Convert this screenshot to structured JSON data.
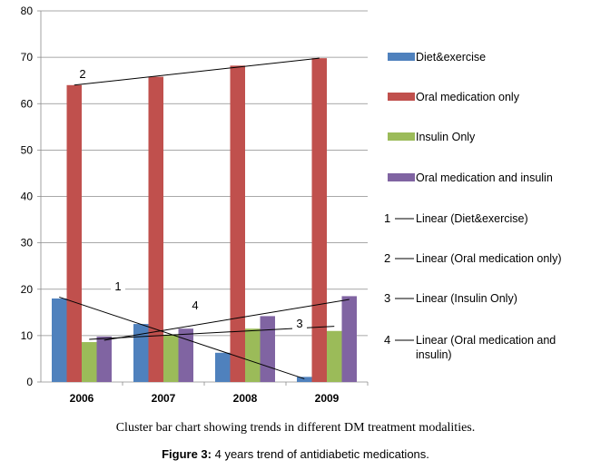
{
  "chart_data": {
    "type": "bar",
    "categories": [
      "2006",
      "2007",
      "2008",
      "2009"
    ],
    "ylim": [
      0,
      80
    ],
    "yticks": [
      0,
      10,
      20,
      30,
      40,
      50,
      60,
      70,
      80
    ],
    "grid": true,
    "legend_position": "right",
    "series": [
      {
        "name": "Diet&exercise",
        "color": "#4F81BD",
        "values": [
          18,
          12.5,
          6.3,
          1.1
        ]
      },
      {
        "name": "Oral medication only",
        "color": "#C0504D",
        "values": [
          64,
          65.8,
          68.2,
          69.8
        ]
      },
      {
        "name": "Insulin Only",
        "color": "#9BBB59",
        "values": [
          8.6,
          10.2,
          11.5,
          11
        ]
      },
      {
        "name": "Oral medication and insulin",
        "color": "#8064A2",
        "values": [
          9.8,
          11.5,
          14.2,
          18.5
        ]
      }
    ],
    "trendlines": [
      {
        "number": "1",
        "name": "Linear (Diet&exercise)",
        "start": 18.3,
        "end": 0.7
      },
      {
        "number": "2",
        "name": "Linear (Oral medication only)",
        "start": 64,
        "end": 69.8
      },
      {
        "number": "3",
        "name": "Linear (Insulin Only)",
        "start": 9.2,
        "end": 12
      },
      {
        "number": "4",
        "name": "Linear (Oral medication and insulin)",
        "start": 9.0,
        "end": 17.8
      }
    ]
  },
  "captions": {
    "description": "Cluster bar chart showing trends in different DM treatment modalities.",
    "figure_label": "Figure 3:",
    "figure_text": " 4 years trend of antidiabetic medications."
  }
}
